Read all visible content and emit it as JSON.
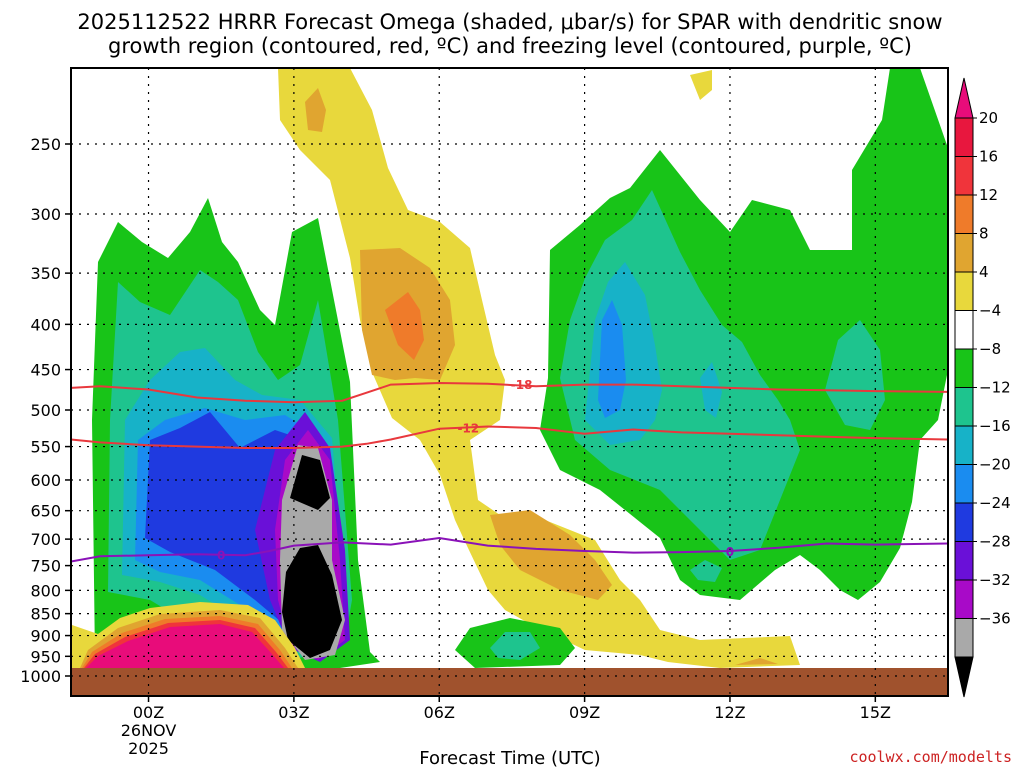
{
  "chart_data": {
    "type": "heatmap",
    "title_line1": "2025112522 HRRR Forecast Omega (shaded, μbar/s) for SPAR with dendritic snow",
    "title_line2": "growth region (contoured, red, ºC) and freezing level (contoured, purple, ºC)",
    "xlabel": "Forecast Time (UTC)",
    "credit": "coolwx.com/modelts",
    "x_ticks": [
      {
        "hour": 2,
        "label": "00Z",
        "sub1": "26NOV",
        "sub2": "2025"
      },
      {
        "hour": 5,
        "label": "03Z"
      },
      {
        "hour": 8,
        "label": "06Z"
      },
      {
        "hour": 11,
        "label": "09Z"
      },
      {
        "hour": 14,
        "label": "12Z"
      },
      {
        "hour": 17,
        "label": "15Z"
      }
    ],
    "x_range_hours": [
      0.4,
      18.5
    ],
    "y_ticks": [
      250,
      300,
      350,
      400,
      450,
      500,
      550,
      600,
      650,
      700,
      750,
      800,
      850,
      900,
      950,
      1000
    ],
    "y_range_mb": [
      200,
      1010
    ],
    "surface_pressure_mb": 965,
    "grid": true,
    "colorbar": {
      "labels": [
        "20",
        "16",
        "12",
        "8",
        "4",
        "−4",
        "−8",
        "−12",
        "−16",
        "−20",
        "−24",
        "−28",
        "−32",
        "−36"
      ],
      "colors": [
        "#e8173e",
        "#f0343b",
        "#ef7b2a",
        "#e0a530",
        "#e8d83c",
        "#ffffff",
        "#18c418",
        "#1ec48e",
        "#17b2c8",
        "#1a8cf0",
        "#1f3ae0",
        "#6a10d8",
        "#a80ac8",
        "#a9a9a9"
      ],
      "top_color": "#e80c7a",
      "bottom_color": "#000000"
    },
    "contours": [
      {
        "name": "dgz_-18",
        "label": "-18",
        "color": "#e8383d",
        "points": [
          [
            0.4,
            472
          ],
          [
            1,
            470
          ],
          [
            2,
            474
          ],
          [
            3,
            484
          ],
          [
            4,
            488
          ],
          [
            5,
            490
          ],
          [
            6,
            488
          ],
          [
            6.5,
            478
          ],
          [
            7,
            468
          ],
          [
            8,
            466
          ],
          [
            9,
            467
          ],
          [
            10,
            470
          ],
          [
            11,
            468
          ],
          [
            12,
            468
          ],
          [
            13,
            470
          ],
          [
            14,
            472
          ],
          [
            15,
            474
          ],
          [
            16,
            475
          ],
          [
            17,
            476
          ],
          [
            18.5,
            477
          ]
        ]
      },
      {
        "name": "dgz_-12",
        "label": "-12",
        "color": "#e8383d",
        "points": [
          [
            0.4,
            540
          ],
          [
            1,
            544
          ],
          [
            2,
            548
          ],
          [
            3,
            550
          ],
          [
            4,
            552
          ],
          [
            5,
            552
          ],
          [
            6,
            550
          ],
          [
            6.5,
            546
          ],
          [
            7,
            540
          ],
          [
            8,
            525
          ],
          [
            9,
            522
          ],
          [
            10,
            524
          ],
          [
            11,
            532
          ],
          [
            12,
            526
          ],
          [
            13,
            530
          ],
          [
            14,
            532
          ],
          [
            15,
            534
          ],
          [
            16,
            536
          ],
          [
            17,
            538
          ],
          [
            18.5,
            540
          ]
        ]
      },
      {
        "name": "freezing_0",
        "label": "0",
        "color": "#8a12b8",
        "points": [
          [
            0.4,
            742
          ],
          [
            1,
            732
          ],
          [
            2,
            730
          ],
          [
            3,
            728
          ],
          [
            4,
            730
          ],
          [
            4.5,
            722
          ],
          [
            5,
            712
          ],
          [
            6,
            706
          ],
          [
            7,
            710
          ],
          [
            8,
            698
          ],
          [
            9,
            712
          ],
          [
            10,
            718
          ],
          [
            11,
            722
          ],
          [
            12,
            725
          ],
          [
            13,
            724
          ],
          [
            14,
            722
          ],
          [
            15,
            716
          ],
          [
            16,
            708
          ],
          [
            17,
            710
          ],
          [
            18.5,
            708
          ]
        ]
      }
    ]
  }
}
